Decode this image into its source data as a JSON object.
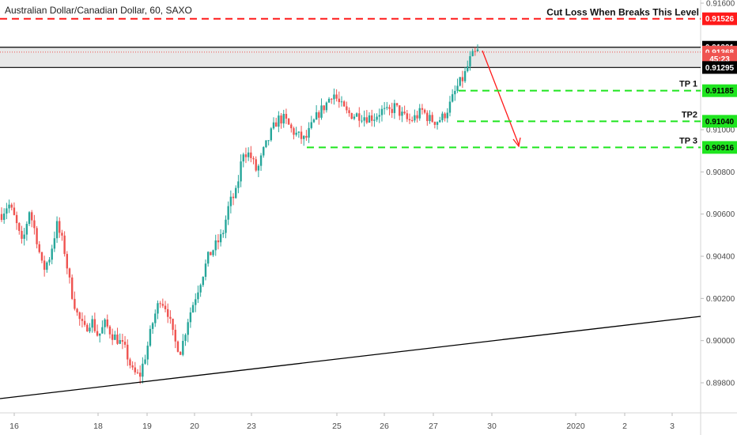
{
  "title": "Australian Dollar/Canadian Dollar, 60, SAXO",
  "chart_data": {
    "type": "candlestick",
    "y_range": [
      0.8972,
      0.9162
    ],
    "y_ticks": [
      "0.91600",
      "0.91000",
      "0.90800",
      "0.90600",
      "0.90400",
      "0.90200",
      "0.90000",
      "0.89800"
    ],
    "y_tick_values": [
      0.916,
      0.91,
      0.908,
      0.906,
      0.904,
      0.902,
      0.9,
      0.898
    ],
    "x_ticks": [
      "16",
      "18",
      "19",
      "20",
      "23",
      "25",
      "26",
      "27",
      "30",
      "2020",
      "2",
      "3"
    ],
    "levels": [
      {
        "id": "cut-loss",
        "label": "Cut Loss When Breaks This Level",
        "value": 0.91526,
        "badge": "0.91526",
        "color": "#ff1a1a"
      },
      {
        "id": "tp1",
        "label": "TP 1",
        "value": 0.91185,
        "badge": "0.91185",
        "color": "#1fe51f"
      },
      {
        "id": "tp2",
        "label": "TP2",
        "value": 0.9104,
        "badge": "0.91040",
        "color": "#1fe51f"
      },
      {
        "id": "tp3",
        "label": "TP 3",
        "value": 0.90916,
        "badge": "0.90916",
        "color": "#1fe51f"
      }
    ],
    "zone": {
      "top": 0.91391,
      "bottom": 0.91295
    },
    "price_badges": [
      {
        "id": "zone-top",
        "text": "0.91391",
        "value": 0.91391,
        "bg": "#000000",
        "fg": "#ffffff"
      },
      {
        "id": "current",
        "text": "0.91368",
        "value": 0.91368,
        "bg": "#ef5350",
        "fg": "#ffffff"
      },
      {
        "id": "countdown",
        "text": "45:23",
        "value": 0.91335,
        "bg": "#ef5350",
        "fg": "#ffffff"
      },
      {
        "id": "zone-bottom",
        "text": "0.91295",
        "value": 0.91295,
        "bg": "#000000",
        "fg": "#ffffff"
      }
    ],
    "colors": {
      "up": "#26a69a",
      "down": "#ef5350",
      "trend": "#000000",
      "arrow": "#ff1a1a"
    },
    "key_closes": [
      0.906,
      0.9065,
      0.9057,
      0.9045,
      0.9062,
      0.905,
      0.9033,
      0.904,
      0.9055,
      0.9045,
      0.9025,
      0.9012,
      0.9005,
      0.901,
      0.9002,
      0.9008,
      0.9003,
      0.9,
      0.8995,
      0.8985,
      0.8983,
      0.8995,
      0.901,
      0.902,
      0.9015,
      0.9,
      0.8995,
      0.901,
      0.902,
      0.903,
      0.904,
      0.9045,
      0.905,
      0.9065,
      0.907,
      0.909,
      0.9088,
      0.908,
      0.909,
      0.9098,
      0.9105,
      0.9105,
      0.91,
      0.9097,
      0.9095,
      0.9102,
      0.9108,
      0.9112,
      0.9118,
      0.9112,
      0.9108,
      0.9107,
      0.9107,
      0.9106,
      0.9106,
      0.9109,
      0.9108,
      0.9111,
      0.9107,
      0.9104,
      0.9106,
      0.9109,
      0.9105,
      0.9104,
      0.9106,
      0.9112,
      0.912,
      0.9125,
      0.9134,
      0.9137
    ]
  }
}
